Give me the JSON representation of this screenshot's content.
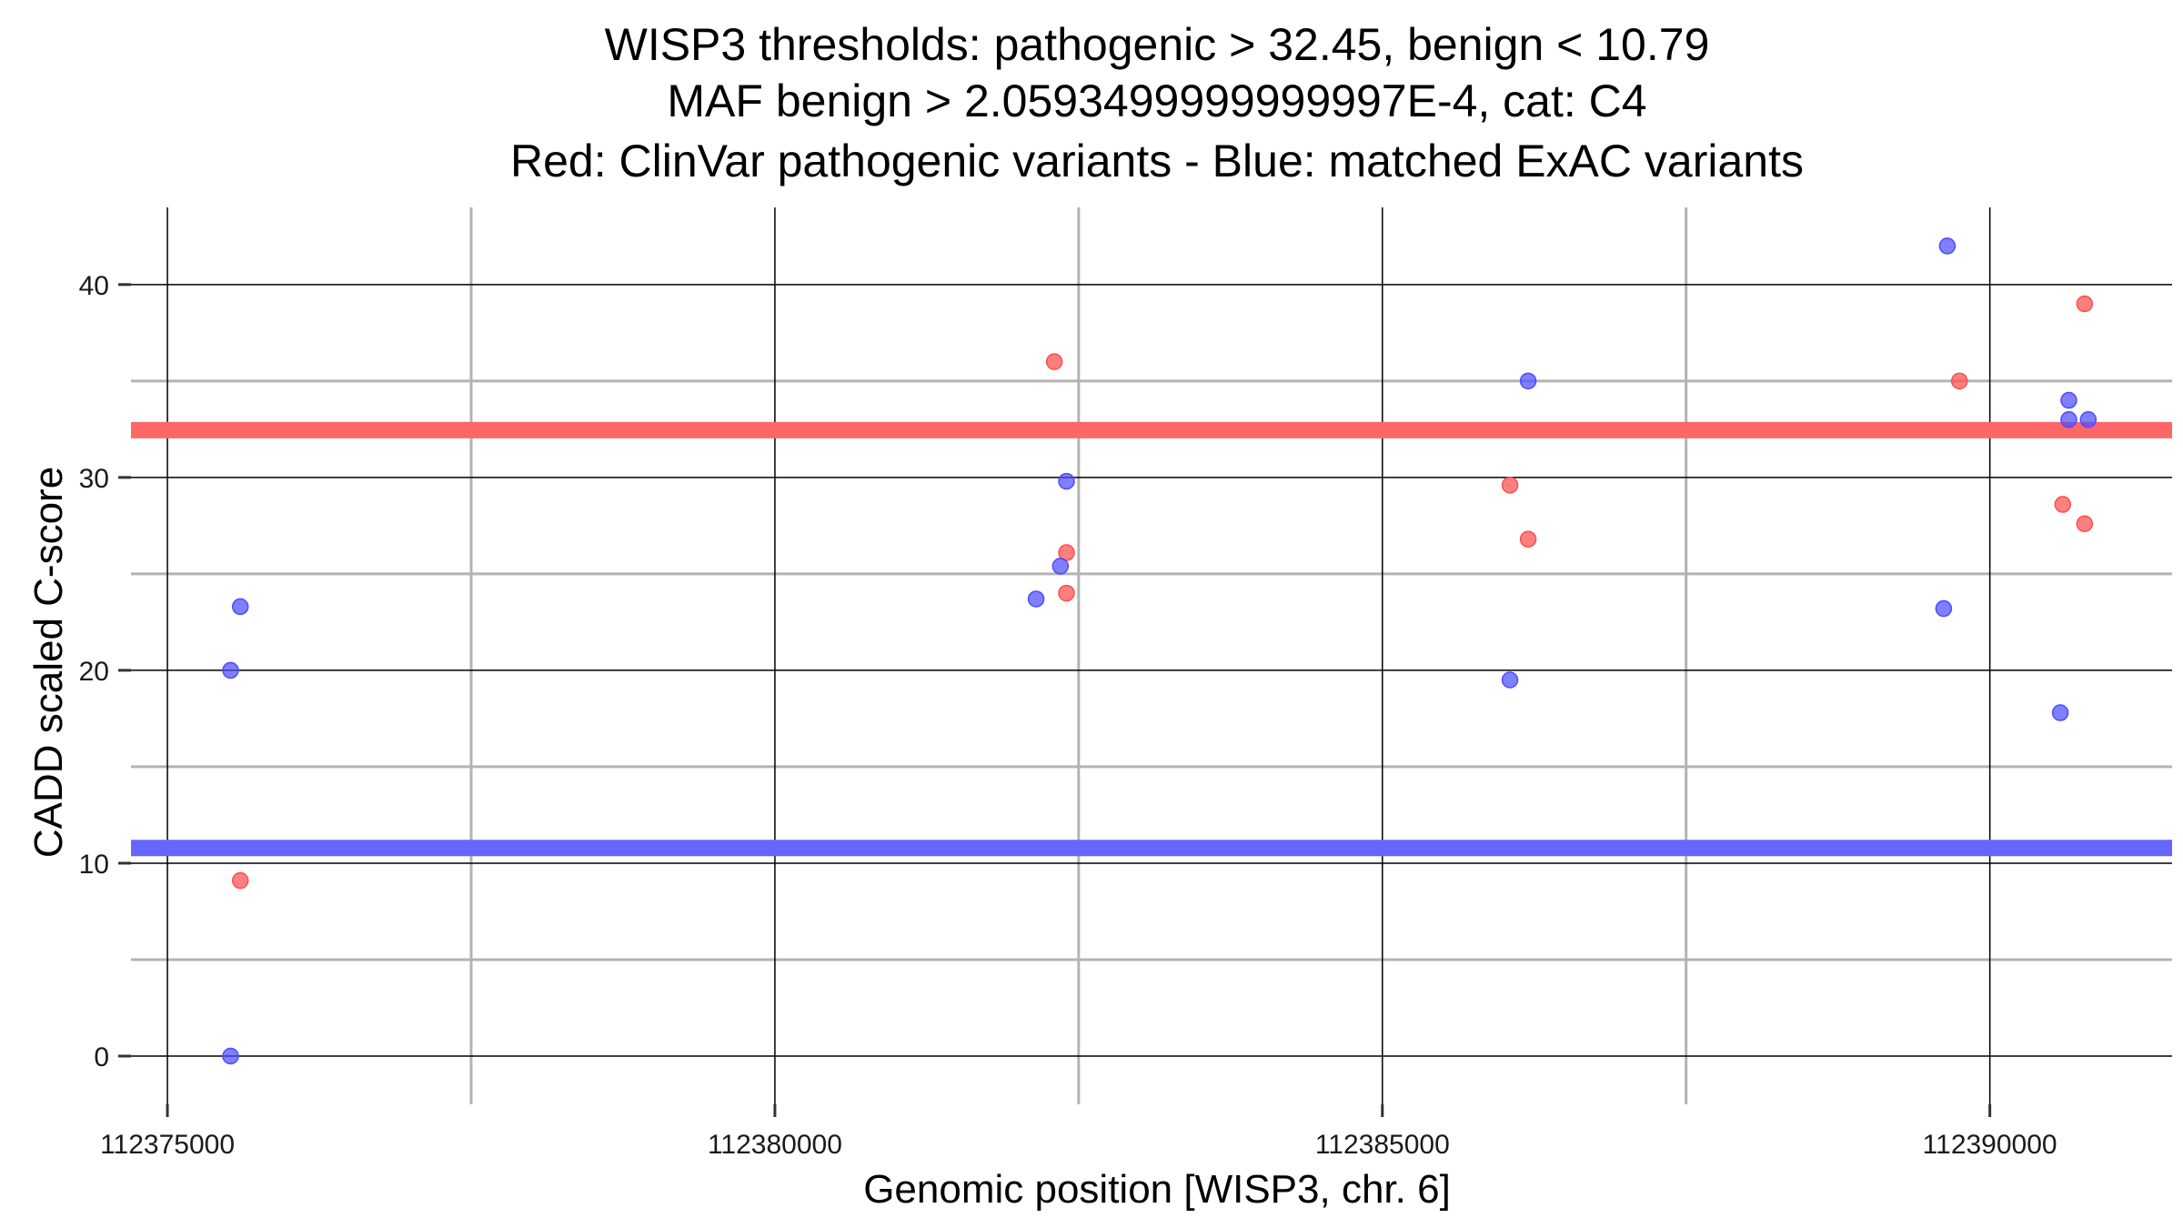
{
  "chart_data": {
    "type": "scatter",
    "title": [
      "WISP3 thresholds: pathogenic > 32.45, benign < 10.79",
      "MAF benign > 2.0593499999999997E-4, cat: C4",
      "Red: ClinVar pathogenic variants - Blue: matched ExAC variants"
    ],
    "xlabel": "Genomic position [WISP3, chr. 6]",
    "ylabel": "CADD scaled C-score",
    "xlim": [
      112374700,
      112391500
    ],
    "ylim": [
      -2.5,
      44
    ],
    "x_major_ticks": [
      112375000,
      112380000,
      112385000,
      112390000
    ],
    "x_tick_labels": [
      "112375000",
      "112380000",
      "112385000",
      "112390000"
    ],
    "x_minor_ticks": [
      112377500,
      112382500,
      112387500
    ],
    "y_major_ticks": [
      0,
      10,
      20,
      30,
      40
    ],
    "y_tick_labels": [
      "0",
      "10",
      "20",
      "30",
      "40"
    ],
    "y_minor_ticks": [
      5,
      15,
      25,
      35
    ],
    "thresholds": [
      {
        "name": "pathogenic",
        "value": 32.45,
        "color": "#ff6666"
      },
      {
        "name": "benign",
        "value": 10.79,
        "color": "#6666ff"
      }
    ],
    "series": [
      {
        "name": "ClinVar pathogenic variants",
        "color": "#ff4d4d",
        "points": [
          {
            "x": 112375600,
            "y": 9.1
          },
          {
            "x": 112382300,
            "y": 36.0
          },
          {
            "x": 112382400,
            "y": 26.1
          },
          {
            "x": 112382400,
            "y": 24.0
          },
          {
            "x": 112386050,
            "y": 29.6
          },
          {
            "x": 112386200,
            "y": 26.8
          },
          {
            "x": 112389750,
            "y": 35.0
          },
          {
            "x": 112390600,
            "y": 28.6
          },
          {
            "x": 112390780,
            "y": 39.0
          },
          {
            "x": 112390780,
            "y": 27.6
          }
        ]
      },
      {
        "name": "matched ExAC variants",
        "color": "#4d4dff",
        "points": [
          {
            "x": 112375520,
            "y": 0.0
          },
          {
            "x": 112375520,
            "y": 20.0
          },
          {
            "x": 112375600,
            "y": 23.3
          },
          {
            "x": 112382150,
            "y": 23.7
          },
          {
            "x": 112382350,
            "y": 25.4
          },
          {
            "x": 112382400,
            "y": 29.8
          },
          {
            "x": 112386050,
            "y": 19.5
          },
          {
            "x": 112386200,
            "y": 35.0
          },
          {
            "x": 112389620,
            "y": 23.2
          },
          {
            "x": 112389650,
            "y": 42.0
          },
          {
            "x": 112390580,
            "y": 17.8
          },
          {
            "x": 112390650,
            "y": 34.0
          },
          {
            "x": 112390650,
            "y": 33.0
          },
          {
            "x": 112390810,
            "y": 33.0
          }
        ]
      }
    ]
  }
}
